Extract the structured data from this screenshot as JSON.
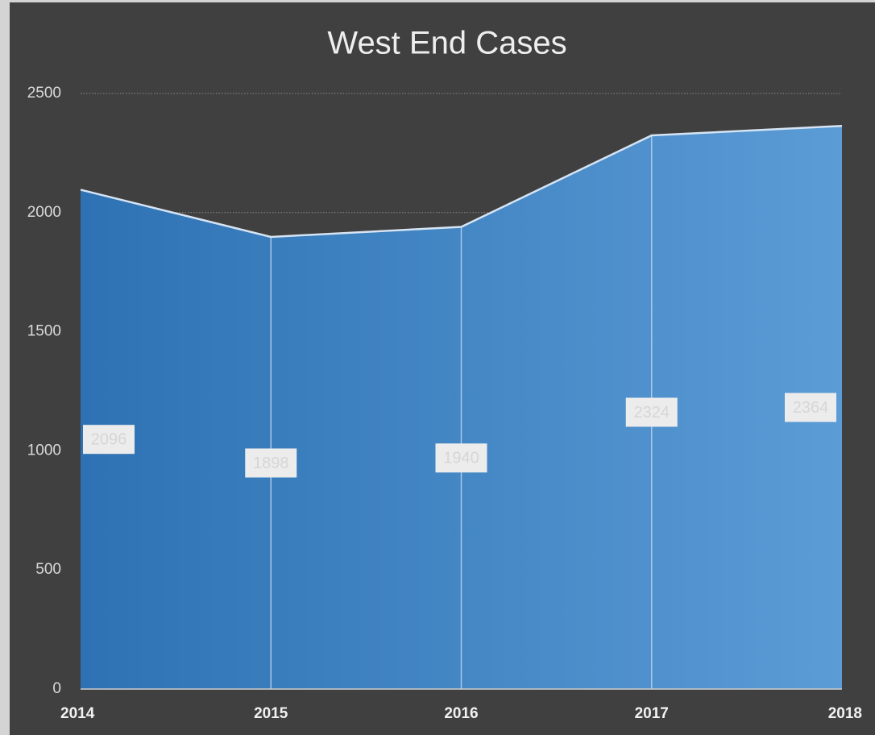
{
  "chart_data": {
    "type": "area",
    "title": "West End Cases",
    "categories": [
      "2014",
      "2015",
      "2016",
      "2017",
      "2018"
    ],
    "values": [
      2096,
      1898,
      1940,
      2324,
      2364
    ],
    "colors": [
      "#2e72b4",
      "#5b9cd6"
    ],
    "ylim": [
      0,
      2500
    ],
    "yticks": [
      0,
      500,
      1000,
      1500,
      2000,
      2500
    ],
    "grid": true
  }
}
